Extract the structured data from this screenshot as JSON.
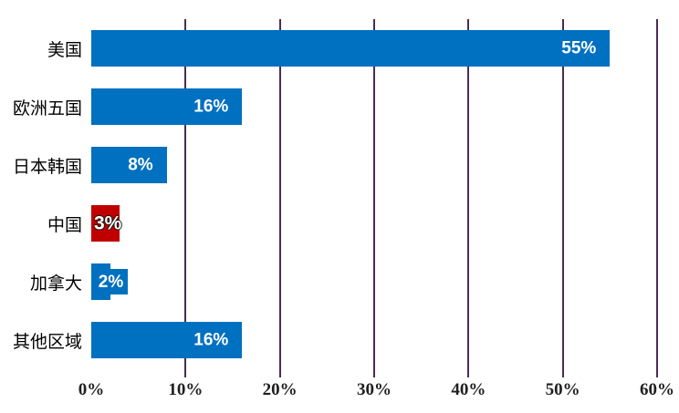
{
  "chart_data": {
    "type": "bar",
    "orientation": "horizontal",
    "title": "",
    "categories": [
      "美国",
      "欧洲五国",
      "日本韩国",
      "中国",
      "加拿大",
      "其他区域"
    ],
    "values": [
      55,
      16,
      8,
      3,
      2,
      16
    ],
    "data_labels": [
      "55%",
      "16%",
      "8%",
      "3%",
      "2%",
      "16%"
    ],
    "bar_colors": [
      "#0070C0",
      "#0070C0",
      "#0070C0",
      "#C00000",
      "#0070C0",
      "#0070C0"
    ],
    "label_modes": [
      "inside-end",
      "inside-end",
      "inside-end",
      "overflow-left",
      "boxed-left",
      "inside-end"
    ],
    "xlabel": "",
    "ylabel": "",
    "xlim": [
      0,
      60
    ],
    "xtick_labels": [
      "0%",
      "10%",
      "20%",
      "30%",
      "40%",
      "50%",
      "60%"
    ],
    "xtick_values": [
      0,
      10,
      20,
      30,
      40,
      50,
      60
    ],
    "grid": "vertical",
    "legend": "none",
    "colors": {
      "bar_default": "#0070C0",
      "bar_highlight": "#C00000",
      "gridline": "#4A2B55",
      "data_label_text": "#FFFFFF",
      "axis_text": "#1F1F1F",
      "category_text": "#000000",
      "background": "#FFFFFF"
    }
  }
}
